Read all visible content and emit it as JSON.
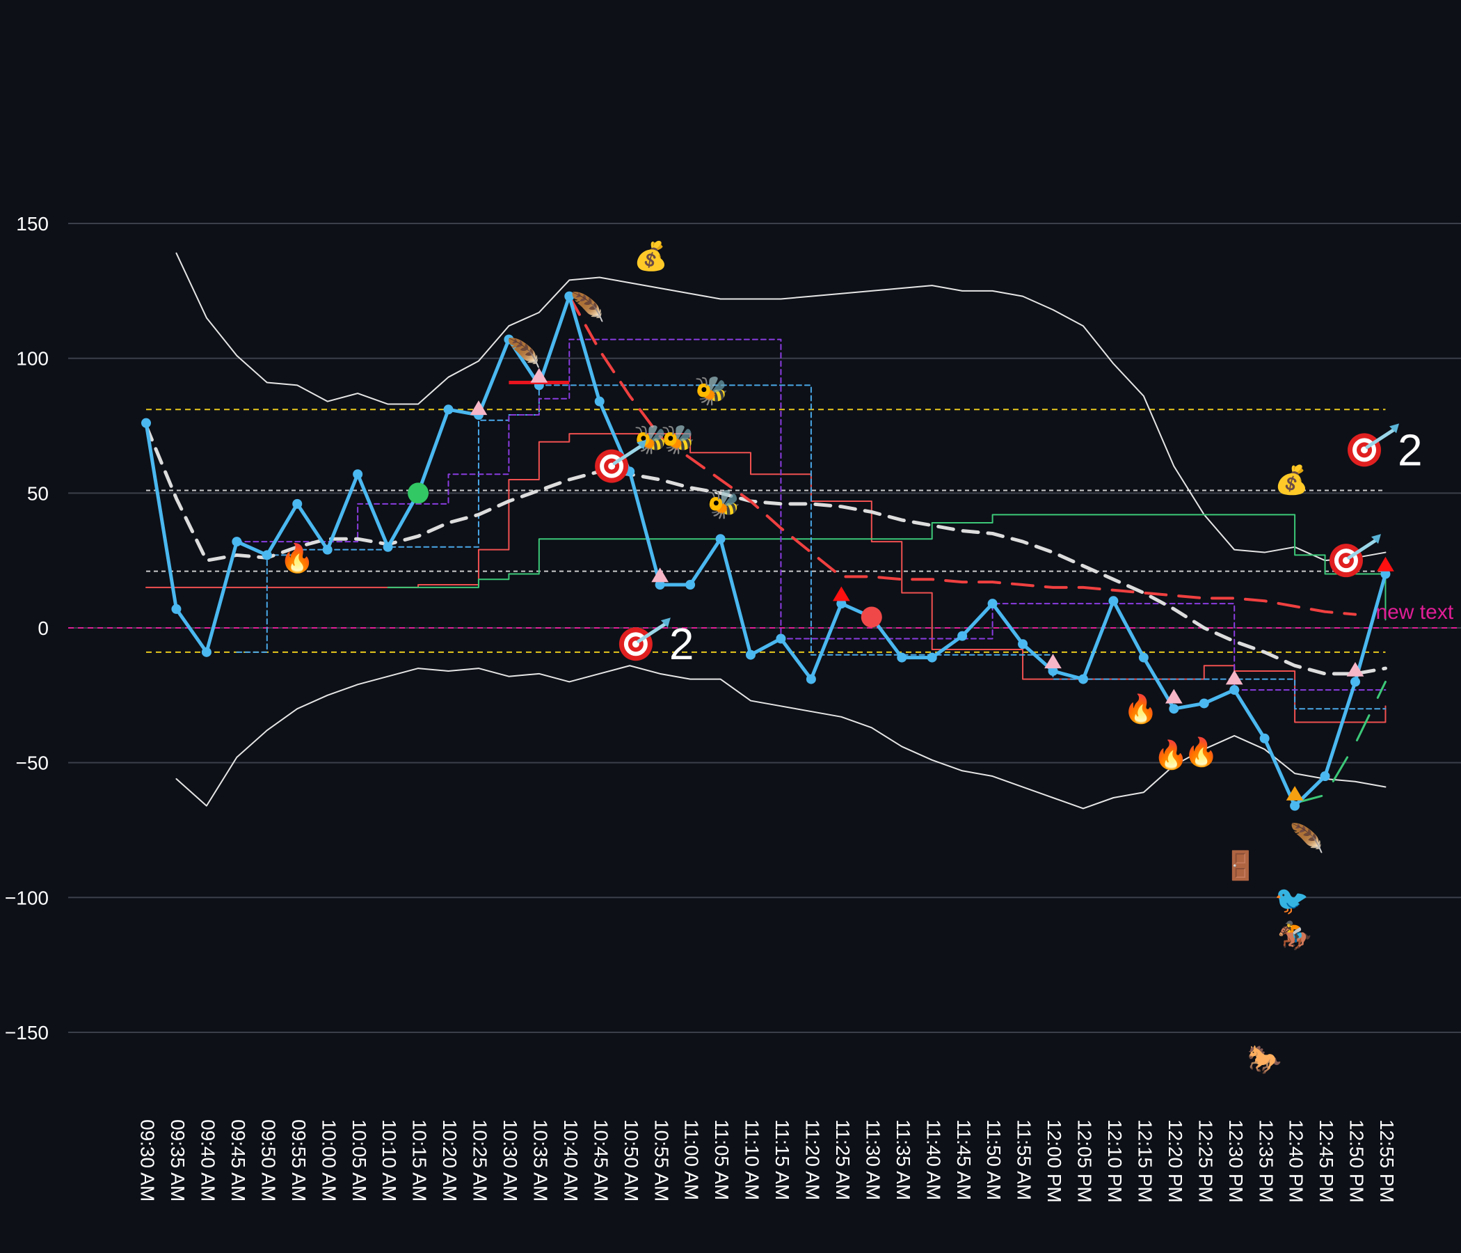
{
  "chart_data": {
    "type": "line",
    "title": "",
    "xlabel": "",
    "ylabel": "",
    "ylim": [
      -150,
      150
    ],
    "yticks": [
      150,
      100,
      50,
      0,
      -50,
      -100,
      -150
    ],
    "ytick_labels": [
      "150",
      "100",
      "50",
      "0",
      "−50",
      "−100",
      "−150"
    ],
    "grid": true,
    "colors": {
      "background": "#0d1017",
      "grid": "#3a3f4a",
      "price": "#4bb8f0",
      "envelope": "#e6e6e6",
      "ema": "#dddddd",
      "trend": "#f04040",
      "red_step": "#f05050",
      "green_step": "#3cc878",
      "blue_step": "#4aa8e8",
      "purple_step": "#8a3ce0",
      "yellow_level": "#e8c81e",
      "white_level": "#cccccc",
      "zero_level": "#e01e96"
    },
    "categories": [
      "09:30 AM",
      "09:35 AM",
      "09:40 AM",
      "09:45 AM",
      "09:50 AM",
      "09:55 AM",
      "10:00 AM",
      "10:05 AM",
      "10:10 AM",
      "10:15 AM",
      "10:20 AM",
      "10:25 AM",
      "10:30 AM",
      "10:35 AM",
      "10:40 AM",
      "10:45 AM",
      "10:50 AM",
      "10:55 AM",
      "11:00 AM",
      "11:05 AM",
      "11:10 AM",
      "11:15 AM",
      "11:20 AM",
      "11:25 AM",
      "11:30 AM",
      "11:35 AM",
      "11:40 AM",
      "11:45 AM",
      "11:50 AM",
      "11:55 AM",
      "12:00 PM",
      "12:05 PM",
      "12:10 PM",
      "12:15 PM",
      "12:20 PM",
      "12:25 PM",
      "12:30 PM",
      "12:35 PM",
      "12:40 PM",
      "12:45 PM",
      "12:50 PM",
      "12:55 PM"
    ],
    "series": [
      {
        "id": "price",
        "style": "thick-markers",
        "values": [
          76,
          7,
          -9,
          32,
          27,
          46,
          29,
          57,
          30,
          50,
          81,
          79,
          107,
          90,
          123,
          84,
          58,
          16,
          16,
          33,
          -10,
          -4,
          -19,
          9,
          4,
          -11,
          -11,
          -3,
          9,
          -6,
          -16,
          -19,
          10,
          -11,
          -30,
          -28,
          -23,
          -41,
          -66,
          -55,
          -20,
          20
        ]
      },
      {
        "id": "upper-envelope",
        "style": "thin",
        "values": [
          null,
          139,
          115,
          101,
          91,
          90,
          84,
          87,
          83,
          83,
          93,
          99,
          112,
          117,
          129,
          130,
          128,
          126,
          124,
          122,
          122,
          122,
          123,
          124,
          125,
          126,
          127,
          125,
          125,
          123,
          118,
          112,
          98,
          86,
          60,
          42,
          29,
          28,
          30,
          25,
          26,
          28
        ]
      },
      {
        "id": "lower-envelope",
        "style": "thin",
        "values": [
          null,
          -56,
          -66,
          -48,
          -38,
          -30,
          -25,
          -21,
          -18,
          -15,
          -16,
          -15,
          -18,
          -17,
          -20,
          -17,
          -14,
          -17,
          -19,
          -19,
          -27,
          -29,
          -31,
          -33,
          -37,
          -44,
          -49,
          -53,
          -55,
          -59,
          -63,
          -67,
          -63,
          -61,
          -51,
          -45,
          -40,
          -45,
          -54,
          -56,
          -57,
          -59
        ]
      },
      {
        "id": "ema",
        "style": "dashed-thick",
        "values": [
          75,
          48,
          25,
          27,
          26,
          30,
          33,
          33,
          31,
          34,
          39,
          42,
          47,
          51,
          55,
          58,
          57,
          55,
          52,
          50,
          47,
          46,
          46,
          45,
          43,
          40,
          38,
          36,
          35,
          32,
          28,
          23,
          18,
          13,
          7,
          0,
          -5,
          -9,
          -14,
          -17,
          -17,
          -15
        ]
      },
      {
        "id": "trend",
        "style": "dashed-red",
        "values": [
          null,
          null,
          null,
          null,
          null,
          null,
          null,
          null,
          null,
          null,
          null,
          null,
          null,
          null,
          123,
          103,
          86,
          71,
          63,
          55,
          47,
          37,
          28,
          19,
          19,
          18,
          18,
          17,
          17,
          16,
          15,
          15,
          14,
          13,
          12,
          11,
          11,
          10,
          8,
          6,
          5,
          null
        ]
      },
      {
        "id": "red-step",
        "style": "thin-red",
        "values": [
          15,
          15,
          15,
          15,
          15,
          15,
          15,
          15,
          15,
          16,
          16,
          29,
          55,
          69,
          72,
          72,
          72,
          72,
          65,
          65,
          57,
          57,
          47,
          47,
          32,
          13,
          -8,
          -8,
          -8,
          -19,
          -19,
          -19,
          -19,
          -19,
          -19,
          -14,
          -16,
          -16,
          -35,
          -35,
          -35,
          -29
        ]
      },
      {
        "id": "green-step",
        "style": "thin-green",
        "values": [
          null,
          null,
          null,
          null,
          null,
          null,
          null,
          null,
          15,
          15,
          15,
          18,
          20,
          33,
          33,
          33,
          33,
          33,
          33,
          33,
          33,
          33,
          33,
          33,
          33,
          33,
          39,
          39,
          42,
          42,
          42,
          42,
          42,
          42,
          42,
          42,
          42,
          42,
          27,
          20,
          20,
          3
        ]
      },
      {
        "id": "blue-step",
        "style": "thin-dashed-blue",
        "values": [
          null,
          null,
          null,
          -9,
          27,
          29,
          29,
          29,
          30,
          30,
          30,
          77,
          79,
          90,
          90,
          90,
          90,
          90,
          90,
          90,
          90,
          90,
          -10,
          -10,
          -10,
          -10,
          -10,
          -10,
          -10,
          -10,
          -19,
          -19,
          -19,
          -19,
          -19,
          -19,
          -19,
          -19,
          -30,
          -30,
          -30,
          -30
        ]
      },
      {
        "id": "purple-step",
        "style": "thin-dashed-purple",
        "values": [
          null,
          null,
          null,
          32,
          32,
          32,
          32,
          46,
          46,
          46,
          57,
          57,
          79,
          85,
          107,
          107,
          107,
          107,
          107,
          107,
          107,
          -4,
          -4,
          -4,
          -4,
          -4,
          -4,
          -4,
          9,
          9,
          9,
          9,
          9,
          9,
          9,
          9,
          -23,
          -23,
          -23,
          -23,
          -23,
          -23
        ]
      },
      {
        "id": "green-spark",
        "style": "green-segment",
        "values": [
          null,
          null,
          null,
          null,
          null,
          null,
          null,
          null,
          null,
          null,
          null,
          null,
          null,
          null,
          null,
          null,
          null,
          null,
          null,
          null,
          null,
          null,
          null,
          null,
          null,
          null,
          null,
          null,
          null,
          null,
          null,
          null,
          null,
          null,
          null,
          null,
          null,
          null,
          -65,
          -62,
          -43,
          -20
        ]
      }
    ],
    "levels": [
      {
        "id": "yellow-upper",
        "value": 81,
        "color": "#e8c81e",
        "dash": "8,6"
      },
      {
        "id": "white-mid-upper",
        "value": 51,
        "color": "#cccccc",
        "dash": "6,5"
      },
      {
        "id": "white-mid-lower",
        "value": 21,
        "color": "#cccccc",
        "dash": "6,5"
      },
      {
        "id": "zero",
        "value": 0,
        "color": "#e01e96",
        "dash": "8,6"
      },
      {
        "id": "yellow-lower",
        "value": -9,
        "color": "#e8c81e",
        "dash": "8,6"
      }
    ],
    "red-segment": {
      "x0": 12,
      "x1": 14,
      "y": 91
    },
    "markers": [
      {
        "type": "pink-triangle",
        "x": 11,
        "y": 81
      },
      {
        "type": "pink-triangle",
        "x": 13,
        "y": 93
      },
      {
        "type": "pink-triangle",
        "x": 17,
        "y": 19
      },
      {
        "type": "pink-triangle",
        "x": 30,
        "y": -13
      },
      {
        "type": "pink-triangle",
        "x": 34,
        "y": -26
      },
      {
        "type": "pink-triangle",
        "x": 36,
        "y": -19
      },
      {
        "type": "pink-triangle",
        "x": 40,
        "y": -16
      },
      {
        "type": "red-triangle",
        "x": 23,
        "y": 12
      },
      {
        "type": "red-triangle",
        "x": 41,
        "y": 23
      },
      {
        "type": "orange-triangle",
        "x": 38,
        "y": -62
      },
      {
        "type": "green-dot",
        "x": 9,
        "y": 50
      },
      {
        "type": "red-dot",
        "x": 24,
        "y": 4
      }
    ],
    "emoji_annotations": [
      {
        "glyph": "💰",
        "x": 16.7,
        "y": 138
      },
      {
        "glyph": "💰",
        "x": 37.9,
        "y": 55
      },
      {
        "glyph": "🪶",
        "x": 12.5,
        "y": 102
      },
      {
        "glyph": "🪶",
        "x": 14.6,
        "y": 119
      },
      {
        "glyph": "🪶",
        "x": 38.4,
        "y": -78
      },
      {
        "glyph": "🐝",
        "x": 18.7,
        "y": 88
      },
      {
        "glyph": "🐝",
        "x": 16.7,
        "y": 70
      },
      {
        "glyph": "🐝",
        "x": 17.6,
        "y": 70
      },
      {
        "glyph": "🐝",
        "x": 19.1,
        "y": 46
      },
      {
        "glyph": "🔥",
        "x": 5,
        "y": 26
      },
      {
        "glyph": "🔥",
        "x": 32.9,
        "y": -30
      },
      {
        "glyph": "🔥",
        "x": 33.9,
        "y": -47
      },
      {
        "glyph": "🔥",
        "x": 34.9,
        "y": -46
      },
      {
        "glyph": "🚪",
        "x": 36.2,
        "y": -88
      },
      {
        "glyph": "🐦",
        "x": 37.9,
        "y": -101
      },
      {
        "glyph": "🏇",
        "x": 38,
        "y": -114
      },
      {
        "glyph": "🐎",
        "x": 37,
        "y": -160
      }
    ],
    "target_annotations": [
      {
        "x": 15.4,
        "y": 60,
        "label": ""
      },
      {
        "x": 16.2,
        "y": -6,
        "label": "2"
      },
      {
        "x": 39.7,
        "y": 25,
        "label": ""
      },
      {
        "x": 40.3,
        "y": 66,
        "label": "2"
      }
    ],
    "text_annotations": [
      {
        "text": "new text",
        "x": 41,
        "y": 6,
        "color": "#e01e96"
      }
    ]
  }
}
